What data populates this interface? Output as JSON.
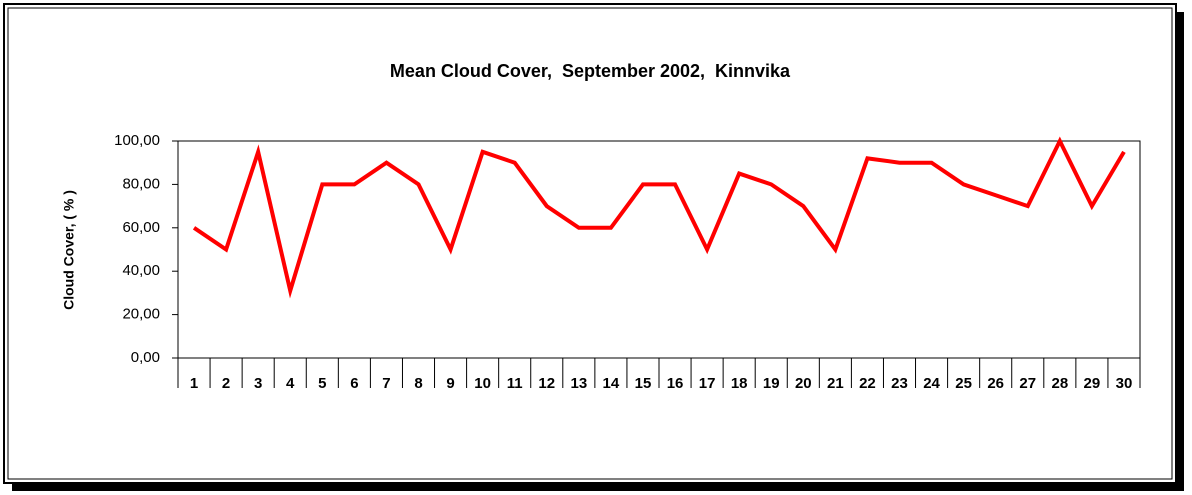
{
  "chart_data": {
    "type": "line",
    "title": "Mean Cloud Cover,  September 2002,  Kinnvika",
    "y_label": "Cloud Cover, ( % )",
    "categories": [
      "1",
      "2",
      "3",
      "4",
      "5",
      "6",
      "7",
      "8",
      "9",
      "10",
      "11",
      "12",
      "13",
      "14",
      "15",
      "16",
      "17",
      "18",
      "19",
      "20",
      "21",
      "22",
      "23",
      "24",
      "25",
      "26",
      "27",
      "28",
      "29",
      "30"
    ],
    "series": [
      {
        "name": "Mean Cloud Cover",
        "color": "#ff0000",
        "values": [
          60,
          50,
          95,
          31,
          80,
          80,
          90,
          80,
          50,
          95,
          90,
          70,
          60,
          60,
          80,
          80,
          50,
          85,
          80,
          70,
          50,
          92,
          90,
          90,
          80,
          75,
          70,
          100,
          70,
          95
        ]
      }
    ],
    "ylim": [
      0,
      100
    ],
    "yticks": [
      {
        "value": 0,
        "label": "0,00"
      },
      {
        "value": 20,
        "label": "20,00"
      },
      {
        "value": 40,
        "label": "40,00"
      },
      {
        "value": 60,
        "label": "60,00"
      },
      {
        "value": 80,
        "label": "80,00"
      },
      {
        "value": 100,
        "label": "100,00"
      }
    ],
    "grid": false
  }
}
